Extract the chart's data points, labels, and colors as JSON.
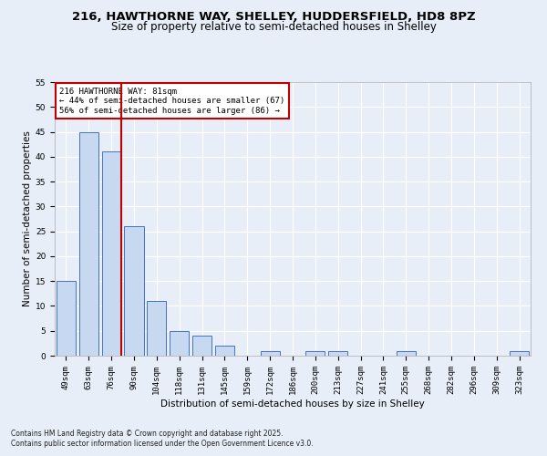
{
  "title1": "216, HAWTHORNE WAY, SHELLEY, HUDDERSFIELD, HD8 8PZ",
  "title2": "Size of property relative to semi-detached houses in Shelley",
  "xlabel": "Distribution of semi-detached houses by size in Shelley",
  "ylabel": "Number of semi-detached properties",
  "categories": [
    "49sqm",
    "63sqm",
    "76sqm",
    "90sqm",
    "104sqm",
    "118sqm",
    "131sqm",
    "145sqm",
    "159sqm",
    "172sqm",
    "186sqm",
    "200sqm",
    "213sqm",
    "227sqm",
    "241sqm",
    "255sqm",
    "268sqm",
    "282sqm",
    "296sqm",
    "309sqm",
    "323sqm"
  ],
  "values": [
    15,
    45,
    41,
    26,
    11,
    5,
    4,
    2,
    0,
    1,
    0,
    1,
    1,
    0,
    0,
    1,
    0,
    0,
    0,
    0,
    1
  ],
  "bar_color": "#c6d9f0",
  "bar_edge_color": "#4472c4",
  "highlight_index": 2,
  "highlight_color": "#c00000",
  "ylim": [
    0,
    55
  ],
  "yticks": [
    0,
    5,
    10,
    15,
    20,
    25,
    30,
    35,
    40,
    45,
    50,
    55
  ],
  "annotation_title": "216 HAWTHORNE WAY: 81sqm",
  "annotation_line1": "← 44% of semi-detached houses are smaller (67)",
  "annotation_line2": "56% of semi-detached houses are larger (86) →",
  "footnote1": "Contains HM Land Registry data © Crown copyright and database right 2025.",
  "footnote2": "Contains public sector information licensed under the Open Government Licence v3.0.",
  "bg_color": "#e8eef7",
  "plot_bg_color": "#e8eef7",
  "grid_color": "#ffffff",
  "title_fontsize": 9.5,
  "subtitle_fontsize": 8.5,
  "axis_label_fontsize": 7.5,
  "tick_fontsize": 6.5,
  "footnote_fontsize": 5.5
}
